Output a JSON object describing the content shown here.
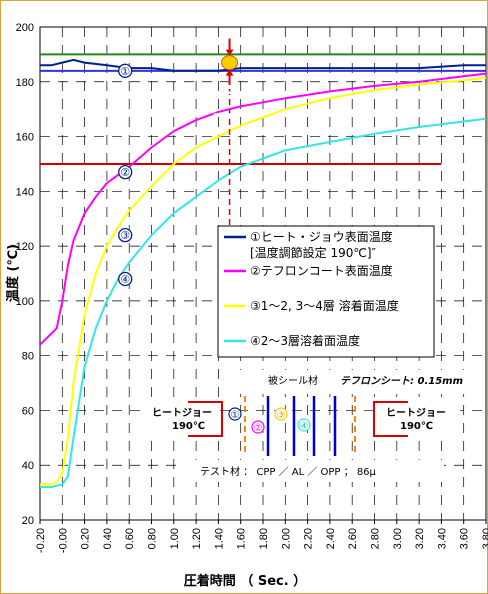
{
  "chart_data": {
    "type": "line",
    "xlabel": "圧着時間 （ Sec. ）",
    "ylabel": "温度 (℃)",
    "xlim": [
      -0.2,
      3.8
    ],
    "ylim": [
      20,
      200
    ],
    "x_ticks": [
      "-0.20",
      "-0.00",
      "0.20",
      "0.40",
      "0.60",
      "0.80",
      "1.00",
      "1.20",
      "1.40",
      "1.60",
      "1.80",
      "2.00",
      "2.20",
      "2.40",
      "2.60",
      "2.80",
      "3.00",
      "3.20",
      "3.40",
      "3.60",
      "3.80"
    ],
    "y_ticks": [
      "20",
      "40",
      "60",
      "80",
      "100",
      "120",
      "140",
      "160",
      "180",
      "200"
    ],
    "grid": true,
    "series": [
      {
        "name": "①ヒート・ジョウ表面温度",
        "name_line2": "[温度調節設定 190℃]″",
        "color": "#00208c",
        "x": [
          -0.2,
          -0.1,
          0.0,
          0.1,
          0.2,
          0.4,
          0.6,
          0.8,
          1.0,
          1.2,
          1.4,
          1.6,
          2.0,
          2.4,
          2.8,
          3.2,
          3.6,
          3.8
        ],
        "y": [
          186,
          186,
          187,
          188,
          187,
          186,
          185,
          185,
          184,
          184,
          184,
          185,
          185,
          185,
          185,
          185,
          186,
          186
        ]
      },
      {
        "name": "②テフロンコート表面温度",
        "color": "#ff00ff",
        "x": [
          -0.2,
          -0.1,
          -0.05,
          0.0,
          0.05,
          0.1,
          0.2,
          0.3,
          0.4,
          0.5,
          0.6,
          0.8,
          1.0,
          1.2,
          1.4,
          1.6,
          1.8,
          2.0,
          2.4,
          2.8,
          3.2,
          3.6,
          3.8
        ],
        "y": [
          84,
          88,
          90,
          100,
          113,
          122,
          132,
          138,
          143,
          146,
          149,
          156,
          162,
          166,
          169,
          171,
          172.5,
          174,
          176.5,
          178.5,
          180,
          182,
          183
        ]
      },
      {
        "name": "③1～2, 3～4層 溶着面温度",
        "color": "#ffff00",
        "x": [
          -0.2,
          -0.1,
          -0.05,
          0.0,
          0.05,
          0.1,
          0.2,
          0.3,
          0.4,
          0.5,
          0.6,
          0.8,
          1.0,
          1.2,
          1.4,
          1.6,
          1.8,
          2.0,
          2.4,
          2.8,
          3.2,
          3.6,
          3.8
        ],
        "y": [
          33,
          33,
          34,
          37,
          50,
          70,
          95,
          110,
          120,
          127,
          133,
          142,
          150,
          156,
          160,
          164,
          167,
          170,
          174,
          177,
          179,
          180.5,
          181.5
        ]
      },
      {
        "name": "④2～3層溶着面温度",
        "color": "#33e6e6",
        "x": [
          -0.2,
          -0.1,
          0.0,
          0.05,
          0.1,
          0.2,
          0.3,
          0.4,
          0.5,
          0.6,
          0.8,
          1.0,
          1.2,
          1.4,
          1.6,
          1.8,
          2.0,
          2.4,
          2.8,
          3.2,
          3.6,
          3.8
        ],
        "y": [
          32,
          32,
          33,
          36,
          50,
          76,
          90,
          100,
          108,
          114,
          124,
          132,
          138,
          144,
          149,
          152,
          155,
          158,
          161,
          163.5,
          165.5,
          166.5
        ]
      }
    ],
    "reference_lines": [
      {
        "y": 190,
        "color": "#228822"
      },
      {
        "y": 184,
        "color": "#3333dd"
      },
      {
        "y": 150,
        "x_from": -0.2,
        "x_to": 3.4,
        "color": "#cc0000"
      }
    ],
    "marker_numbers": [
      {
        "label": "①",
        "x": 0.6,
        "y": 184
      },
      {
        "label": "②",
        "x": 0.6,
        "y": 147
      },
      {
        "label": "③",
        "x": 0.6,
        "y": 124
      },
      {
        "label": "④",
        "x": 0.6,
        "y": 108
      }
    ],
    "annotations": {
      "material": "被シール材",
      "teflon_sheet": "テフロンシート: 0.15mm",
      "jaw_left": "ヒートジョー",
      "jaw_left_temp": "190℃",
      "jaw_right": "ヒートジョー",
      "jaw_right_temp": "190℃",
      "test_material": "テスト材 ： CPP ／ AL ／ OPP ； 86μ",
      "layer_labels": [
        "①",
        "②",
        "③",
        "④"
      ]
    },
    "colors": {
      "target_dot": "#ffcc00",
      "arrow": "#dd0000",
      "teflon": "#ff8800",
      "film": "#0000cc"
    }
  }
}
